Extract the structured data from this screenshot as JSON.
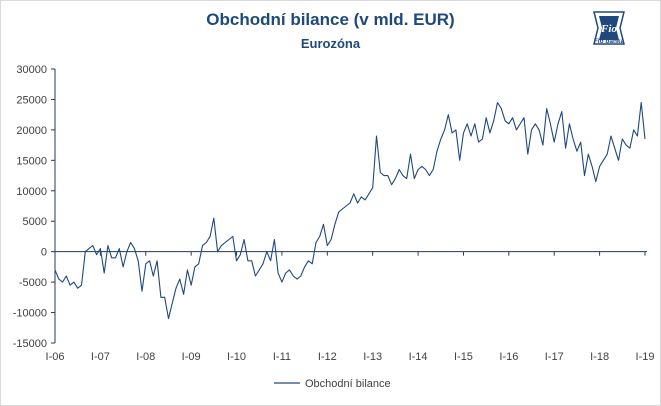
{
  "title": "Obchodní bilance (v mld. EUR)",
  "subtitle": "Eurozóna",
  "logo": {
    "mark": "Fio",
    "text": "Fio banka"
  },
  "colors": {
    "title": "#1f497d",
    "line": "#1f497d",
    "axis": "#1f3864",
    "text": "#404040"
  },
  "chart_data": {
    "type": "line",
    "title": "Obchodní bilance (v mld. EUR)",
    "subtitle": "Eurozóna",
    "xlabel": "",
    "ylabel": "",
    "ylim": [
      -15000,
      30000
    ],
    "yticks": [
      -15000,
      -10000,
      -5000,
      0,
      5000,
      10000,
      15000,
      20000,
      25000,
      30000
    ],
    "ytick_labels": [
      "-15000",
      "-10000",
      "-5000",
      "0",
      "5000",
      "10000",
      "15000",
      "20000",
      "25000",
      "30000"
    ],
    "x_start": "2006-01",
    "xtick_labels": [
      "I-06",
      "I-07",
      "I-08",
      "I-09",
      "I-10",
      "I-11",
      "I-12",
      "I-13",
      "I-14",
      "I-15",
      "I-16",
      "I-17",
      "I-18",
      "I-19"
    ],
    "grid": false,
    "legend": "bottom",
    "series": [
      {
        "name": "Obchodní bilance",
        "values": [
          -3000,
          -4500,
          -5000,
          -4000,
          -5500,
          -5000,
          -6000,
          -5500,
          0,
          500,
          1000,
          -500,
          500,
          -3500,
          1000,
          -1000,
          -1000,
          500,
          -2500,
          0,
          1500,
          500,
          -1500,
          -6500,
          -2000,
          -1500,
          -4000,
          -1500,
          -7500,
          -7500,
          -11000,
          -8500,
          -6000,
          -4500,
          -7000,
          -3000,
          -5500,
          -2500,
          -2000,
          1000,
          1500,
          2500,
          5500,
          0,
          1000,
          1500,
          2000,
          2500,
          -1500,
          -500,
          2000,
          -1500,
          -1500,
          -4000,
          -3000,
          -2000,
          0,
          -1500,
          2000,
          -3500,
          -5000,
          -3500,
          -3000,
          -4000,
          -4500,
          -4000,
          -2500,
          -1500,
          -2000,
          1500,
          2500,
          4500,
          1000,
          2000,
          4500,
          6500,
          7000,
          7500,
          8000,
          9500,
          8000,
          9000,
          8500,
          9500,
          10500,
          19000,
          13000,
          12500,
          12500,
          11000,
          12000,
          13500,
          12500,
          12000,
          16000,
          12000,
          13500,
          14000,
          13500,
          12500,
          13500,
          16500,
          18500,
          20000,
          22500,
          19500,
          20000,
          15000,
          19500,
          21000,
          19000,
          21000,
          18000,
          18500,
          22000,
          19500,
          21500,
          24500,
          23500,
          21500,
          21000,
          22000,
          20000,
          21000,
          22000,
          16000,
          20000,
          21000,
          20000,
          17500,
          23500,
          21000,
          18000,
          21000,
          23000,
          17000,
          21000,
          18500,
          16500,
          18000,
          12500,
          16000,
          14000,
          11500,
          14000,
          15000,
          16000,
          19000,
          17000,
          15000,
          18500,
          17500,
          17000,
          20000,
          19000,
          24500,
          18500
        ]
      }
    ]
  }
}
